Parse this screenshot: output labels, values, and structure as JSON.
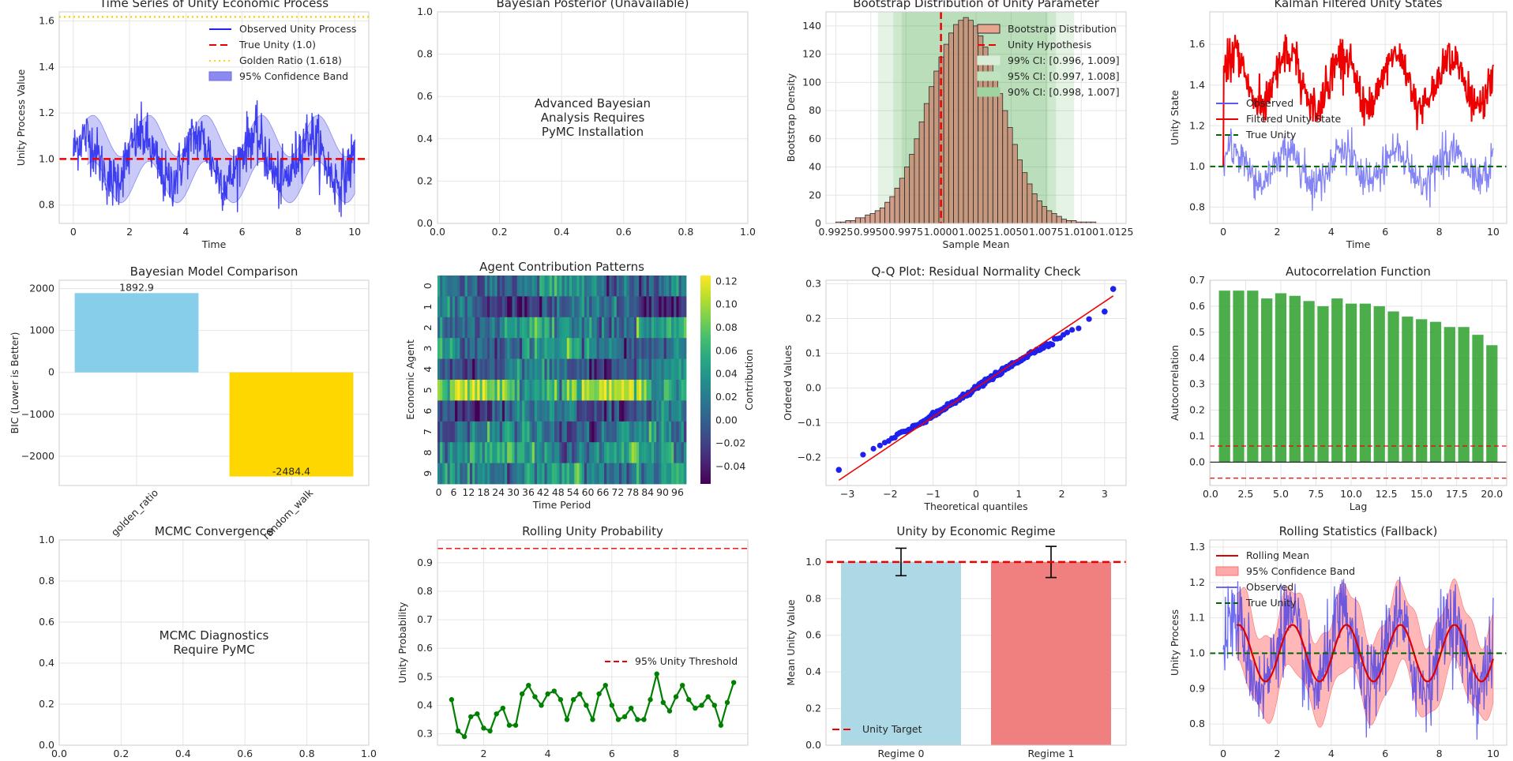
{
  "chart_data": [
    {
      "id": "p1",
      "type": "line",
      "title": "Time Series of Unity Economic Process",
      "xlabel": "Time",
      "ylabel": "Unity Process Value",
      "xlim": [
        -0.5,
        10.5
      ],
      "ylim": [
        0.72,
        1.64
      ],
      "xticks": [
        0,
        2,
        4,
        6,
        8,
        10
      ],
      "yticks": [
        0.8,
        1.0,
        1.2,
        1.4,
        1.6
      ],
      "legend": [
        "Observed Unity Process",
        "True Unity (1.0)",
        "Golden Ratio (1.618)",
        "95% Confidence Band"
      ],
      "true_unity": 1.0,
      "golden_ratio": 1.618,
      "series": {
        "period": 2.0,
        "amplitude": 0.1,
        "noise": 0.06,
        "band_halfwidth": 0.1
      },
      "colors": {
        "observed": "#2323ee",
        "band": "#8a8af0",
        "true": "#ee0000",
        "golden": "#ffd700"
      }
    },
    {
      "id": "p2",
      "type": "text",
      "title": "Bayesian Posterior (Unavailable)",
      "message": [
        "Advanced Bayesian",
        "Analysis Requires",
        "PyMC Installation"
      ],
      "xlim": [
        0,
        1
      ],
      "ylim": [
        0,
        1
      ],
      "xticks": [
        "0.0",
        "0.2",
        "0.4",
        "0.6",
        "0.8",
        "1.0"
      ],
      "yticks": [
        "0.0",
        "0.2",
        "0.4",
        "0.6",
        "0.8",
        "1.0"
      ]
    },
    {
      "id": "p3",
      "type": "bar",
      "title": "Bootstrap Distribution of Unity Parameter",
      "xlabel": "Sample Mean",
      "ylabel": "Bootstrap Density",
      "xlim": [
        0.9918,
        1.0132
      ],
      "ylim": [
        0,
        150
      ],
      "xticks": [
        "0.9925",
        "0.9950",
        "0.9975",
        "1.0000",
        "1.0025",
        "1.0050",
        "1.0075",
        "1.0100",
        "1.0125"
      ],
      "yticks": [
        0,
        20,
        40,
        60,
        80,
        100,
        120,
        140
      ],
      "bins_start": 0.9925,
      "bin_width": 0.00035,
      "values": [
        1,
        1,
        2,
        2,
        4,
        4,
        6,
        7,
        9,
        11,
        15,
        19,
        25,
        32,
        40,
        49,
        60,
        72,
        85,
        97,
        108,
        118,
        127,
        135,
        141,
        144,
        146,
        144,
        140,
        133,
        125,
        115,
        104,
        92,
        80,
        68,
        56,
        45,
        36,
        28,
        21,
        16,
        12,
        9,
        7,
        5,
        3,
        2,
        2,
        1,
        1,
        1,
        1
      ],
      "hypothesis": 1.0,
      "ci": [
        {
          "label": "99% CI: [0.996, 1.009]",
          "lo": 0.9955,
          "hi": 1.0095
        },
        {
          "label": "95% CI: [0.997, 1.008]",
          "lo": 0.9966,
          "hi": 1.0082
        },
        {
          "label": "90% CI: [0.998, 1.007]",
          "lo": 0.9972,
          "hi": 1.0076
        }
      ],
      "legend": [
        "Bootstrap Distribution",
        "Unity Hypothesis",
        "99% CI: [0.996, 1.009]",
        "95% CI: [0.997, 1.008]",
        "90% CI: [0.998, 1.007]"
      ]
    },
    {
      "id": "p4",
      "type": "line",
      "title": "Kalman Filtered Unity States",
      "xlabel": "Time",
      "ylabel": "Unity State",
      "xlim": [
        -0.5,
        10.5
      ],
      "ylim": [
        0.72,
        1.76
      ],
      "xticks": [
        0,
        2,
        4,
        6,
        8,
        10
      ],
      "yticks": [
        0.8,
        1.0,
        1.2,
        1.4,
        1.6
      ],
      "legend": [
        "Observed",
        "Filtered Unity State",
        "True Unity"
      ],
      "true_unity": 1.0
    },
    {
      "id": "p5",
      "type": "bar",
      "title": "Bayesian Model Comparison",
      "ylabel": "BIC (Lower is Better)",
      "categories": [
        "golden_ratio",
        "random_walk"
      ],
      "values": [
        1892.9,
        -2484.4
      ],
      "value_labels": [
        "1892.9",
        "-2484.4"
      ],
      "ylim": [
        -2700,
        2200
      ],
      "yticks": [
        2000,
        1000,
        0,
        -1000,
        -2000
      ],
      "ytick_labels": [
        "2000",
        "1000",
        "0",
        "−1000",
        "−2000"
      ],
      "colors": [
        "#87ceeb",
        "#ffd700"
      ]
    },
    {
      "id": "p6",
      "type": "heatmap",
      "title": "Agent Contribution Patterns",
      "xlabel": "Time Period",
      "ylabel": "Economic Agent",
      "rows": 10,
      "cols": 100,
      "xticks": [
        "0",
        "6",
        "12",
        "18",
        "24",
        "30",
        "36",
        "42",
        "48",
        "54",
        "60",
        "66",
        "72",
        "78",
        "84",
        "90",
        "96"
      ],
      "yticks": [
        "0",
        "1",
        "2",
        "3",
        "4",
        "5",
        "6",
        "7",
        "8",
        "9"
      ],
      "colorbar_label": "Contribution",
      "vmin": -0.055,
      "vmax": 0.125,
      "cbar_ticks": [
        "0.12",
        "0.10",
        "0.08",
        "0.06",
        "0.04",
        "0.02",
        "0.00",
        "−0.02",
        "−0.04"
      ],
      "row_means": [
        0.02,
        -0.01,
        0.03,
        0.02,
        0.0,
        0.08,
        0.0,
        0.01,
        0.04,
        0.03
      ]
    },
    {
      "id": "p7",
      "type": "scatter",
      "title": "Q-Q Plot: Residual Normality Check",
      "xlabel": "Theoretical quantiles",
      "ylabel": "Ordered Values",
      "xlim": [
        -3.5,
        3.5
      ],
      "ylim": [
        -0.28,
        0.31
      ],
      "xticks": [
        -3,
        -2,
        -1,
        0,
        1,
        2,
        3
      ],
      "xtick_labels": [
        "−3",
        "−2",
        "−1",
        "0",
        "1",
        "2",
        "3"
      ],
      "yticks": [
        -0.2,
        -0.1,
        0.0,
        0.1,
        0.2,
        0.3
      ],
      "ytick_labels": [
        "−0.2",
        "−0.1",
        "0.0",
        "0.1",
        "0.2",
        "0.3"
      ],
      "fit_line": {
        "x": [
          -3.2,
          3.2
        ],
        "y": [
          -0.265,
          0.265
        ]
      },
      "extremes": [
        [
          -3.2,
          -0.235
        ],
        [
          3.2,
          0.285
        ],
        [
          3.0,
          0.22
        ]
      ]
    },
    {
      "id": "p8",
      "type": "bar",
      "title": "Autocorrelation Function",
      "xlabel": "Lag",
      "ylabel": "Autocorrelation",
      "lags": [
        1,
        2,
        3,
        4,
        5,
        6,
        7,
        8,
        9,
        10,
        11,
        12,
        13,
        14,
        15,
        16,
        17,
        18,
        19,
        20
      ],
      "values": [
        0.66,
        0.66,
        0.66,
        0.63,
        0.65,
        0.64,
        0.62,
        0.6,
        0.63,
        0.61,
        0.61,
        0.6,
        0.58,
        0.56,
        0.55,
        0.54,
        0.52,
        0.52,
        0.49,
        0.45
      ],
      "conf": 0.062,
      "xlim": [
        -0.05,
        21.05
      ],
      "ylim": [
        -0.09,
        0.7
      ],
      "xticks": [
        "0.0",
        "2.5",
        "5.0",
        "7.5",
        "10.0",
        "12.5",
        "15.0",
        "17.5",
        "20.0"
      ],
      "yticks": [
        0.0,
        0.1,
        0.2,
        0.3,
        0.4,
        0.5,
        0.6,
        0.7
      ]
    },
    {
      "id": "p9",
      "type": "text",
      "title": "MCMC Convergence",
      "message": [
        "MCMC Diagnostics",
        "Require PyMC"
      ],
      "xlim": [
        0,
        1
      ],
      "ylim": [
        0,
        1
      ],
      "xticks": [
        "0.0",
        "0.2",
        "0.4",
        "0.6",
        "0.8",
        "1.0"
      ],
      "yticks": [
        "0.0",
        "0.2",
        "0.4",
        "0.6",
        "0.8",
        "1.0"
      ]
    },
    {
      "id": "p10",
      "type": "line",
      "title": "Rolling Unity Probability",
      "ylabel": "Unity Probability",
      "x": [
        1.0,
        1.2,
        1.4,
        1.6,
        1.8,
        2.0,
        2.2,
        2.4,
        2.6,
        2.8,
        3.0,
        3.2,
        3.4,
        3.6,
        3.8,
        4.0,
        4.2,
        4.4,
        4.6,
        4.8,
        5.0,
        5.2,
        5.4,
        5.6,
        5.8,
        6.0,
        6.2,
        6.4,
        6.6,
        6.8,
        7.0,
        7.2,
        7.4,
        7.6,
        7.8,
        8.0,
        8.2,
        8.4,
        8.6,
        8.8,
        9.0,
        9.2,
        9.4,
        9.6,
        9.8
      ],
      "values": [
        0.42,
        0.31,
        0.29,
        0.36,
        0.37,
        0.32,
        0.31,
        0.37,
        0.39,
        0.33,
        0.33,
        0.44,
        0.47,
        0.43,
        0.4,
        0.44,
        0.45,
        0.42,
        0.35,
        0.42,
        0.44,
        0.4,
        0.35,
        0.44,
        0.47,
        0.4,
        0.35,
        0.36,
        0.39,
        0.35,
        0.35,
        0.42,
        0.51,
        0.41,
        0.38,
        0.43,
        0.47,
        0.42,
        0.39,
        0.4,
        0.43,
        0.4,
        0.33,
        0.41,
        0.48
      ],
      "threshold": 0.95,
      "threshold_label": "95% Unity Threshold",
      "xlim": [
        0.56,
        10.24
      ],
      "ylim": [
        0.26,
        0.98
      ],
      "xticks": [
        2,
        4,
        6,
        8
      ],
      "yticks": [
        0.3,
        0.4,
        0.5,
        0.6,
        0.7,
        0.8,
        0.9
      ]
    },
    {
      "id": "p11",
      "type": "bar",
      "title": "Unity by Economic Regime",
      "ylabel": "Mean Unity Value",
      "categories": [
        "Regime 0",
        "Regime 1"
      ],
      "values": [
        1.0,
        1.0
      ],
      "errors": [
        0.075,
        0.085
      ],
      "colors": [
        "#add8e6",
        "#f08080"
      ],
      "target": 1.0,
      "legend": [
        "Unity Target"
      ],
      "ylim": [
        0,
        1.12
      ],
      "yticks": [
        0.0,
        0.2,
        0.4,
        0.6,
        0.8,
        1.0
      ]
    },
    {
      "id": "p12",
      "type": "line",
      "title": "Rolling Statistics (Fallback)",
      "ylabel": "Unity Process",
      "xlim": [
        -0.5,
        10.5
      ],
      "ylim": [
        0.74,
        1.32
      ],
      "xticks": [
        0,
        2,
        4,
        6,
        8,
        10
      ],
      "yticks": [
        0.8,
        0.9,
        1.0,
        1.1,
        1.2,
        1.3
      ],
      "legend": [
        "Rolling Mean",
        "95% Confidence Band",
        "Observed",
        "True Unity"
      ],
      "true_unity": 1.0
    }
  ]
}
